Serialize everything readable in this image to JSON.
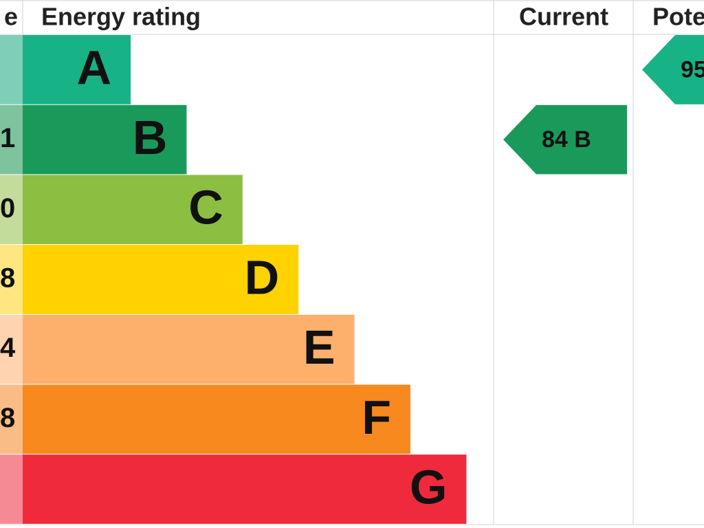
{
  "header": {
    "score": "e",
    "rating": "Energy rating",
    "current": "Current",
    "potential": "Pote"
  },
  "rows": [
    {
      "band": "A",
      "color": "#17b286",
      "pale": "#7fcfb8"
    },
    {
      "band": "B",
      "color": "#1a9a5a",
      "pale": "#7cc39e",
      "score": "1"
    },
    {
      "band": "C",
      "color": "#8cbe42",
      "pale": "#c3dc9c",
      "score": "0"
    },
    {
      "band": "D",
      "color": "#ffd200",
      "pale": "#ffe680",
      "score": "8"
    },
    {
      "band": "E",
      "color": "#fdb06b",
      "pale": "#fdd3b0",
      "score": "4"
    },
    {
      "band": "F",
      "color": "#f7891f",
      "pale": "#fabc86",
      "score": "8"
    },
    {
      "band": "G",
      "color": "#ef2a3c",
      "pale": "#f58a94"
    }
  ],
  "current": {
    "label": "84 B",
    "row": 1,
    "color": "#1a9a5a"
  },
  "potential": {
    "label": "95",
    "row": 0,
    "color": "#17b286"
  }
}
